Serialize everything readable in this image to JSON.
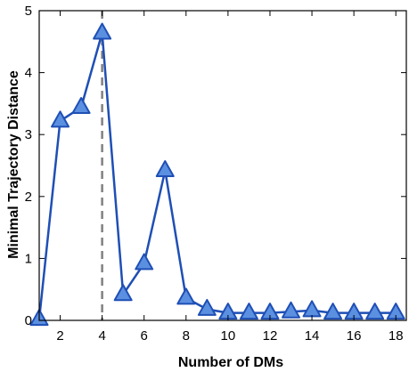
{
  "chart_data": {
    "type": "line",
    "title": "",
    "xlabel": "Number of DMs",
    "ylabel": "Minimal Trajectory Distance",
    "xlim": [
      1,
      18.5
    ],
    "ylim": [
      0,
      5
    ],
    "xticks": [
      2,
      4,
      6,
      8,
      10,
      12,
      14,
      16,
      18
    ],
    "yticks": [
      0,
      1,
      2,
      3,
      4,
      5
    ],
    "grid": false,
    "box": true,
    "series": [
      {
        "x": [
          1,
          2,
          3,
          4,
          5,
          6,
          7,
          8,
          9,
          10,
          11,
          12,
          13,
          14,
          15,
          16,
          17,
          18
        ],
        "y": [
          0.02,
          3.22,
          3.44,
          4.64,
          0.42,
          0.92,
          2.42,
          0.36,
          0.18,
          0.12,
          0.12,
          0.12,
          0.14,
          0.16,
          0.12,
          0.12,
          0.12,
          0.12
        ],
        "marker": "triangle",
        "line_color": "#1f4fb5",
        "marker_fill": "#5b8fe0",
        "marker_edge": "#1f4fb5"
      }
    ],
    "vline": {
      "x": 4,
      "style": "dashed",
      "color": "#808080"
    }
  }
}
